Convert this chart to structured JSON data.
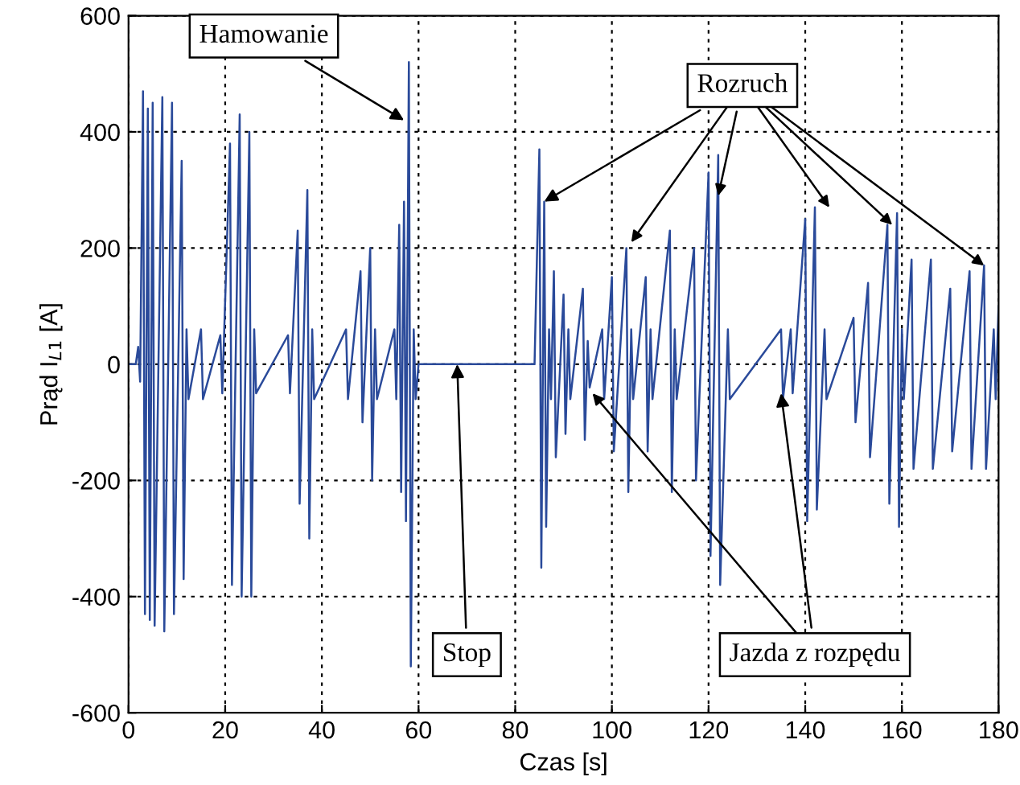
{
  "chart_data": {
    "type": "line",
    "xlabel": "Czas [s]",
    "ylabel": "Prąd I$_{L1}$ [A]",
    "xlim": [
      0,
      180
    ],
    "ylim": [
      -600,
      600
    ],
    "xticks": [
      0,
      20,
      40,
      60,
      80,
      100,
      120,
      140,
      160,
      180
    ],
    "yticks": [
      -600,
      -400,
      -200,
      0,
      200,
      400,
      600
    ],
    "grid": true,
    "line_style": "solid",
    "marker": "none",
    "series": [
      {
        "color": "#2a4a9a",
        "x": [
          0,
          1.5,
          2,
          2.4,
          3,
          3.4,
          4,
          4.4,
          5,
          5.4,
          7,
          7.4,
          9,
          9.4,
          11,
          11.4,
          12,
          12.4,
          15,
          15.4,
          19,
          19.4,
          21,
          21.4,
          23,
          23.4,
          25,
          25.4,
          26,
          26.4,
          33,
          33.4,
          35,
          35.4,
          37,
          37.4,
          38,
          38.4,
          45,
          45.4,
          48,
          48.4,
          50,
          50.4,
          51,
          51.4,
          55,
          55.4,
          56,
          56.4,
          57,
          57.4,
          58,
          58.4,
          59,
          59.4,
          60,
          84,
          85,
          85.4,
          86,
          86.4,
          87,
          87.4,
          88,
          88.4,
          90,
          90.4,
          91,
          91.4,
          94,
          94.4,
          95,
          95.4,
          98,
          98.4,
          100,
          100.4,
          103,
          103.4,
          104,
          104.4,
          107,
          107.4,
          108,
          108.4,
          112,
          112.4,
          113,
          113.4,
          117,
          117.4,
          120,
          120.4,
          122,
          122.4,
          124,
          124.4,
          135,
          135.4,
          137,
          137.4,
          140,
          140.4,
          142,
          142.4,
          144,
          144.4,
          150,
          150.4,
          153,
          153.4,
          157,
          157.4,
          159,
          159.4,
          160,
          160.4,
          162,
          162.4,
          166,
          166.4,
          170,
          170.4,
          174,
          174.4,
          177,
          177.4,
          179,
          179.4,
          180
        ],
        "values": [
          0,
          0,
          30,
          -30,
          470,
          -430,
          440,
          -440,
          450,
          -450,
          460,
          -460,
          450,
          -430,
          350,
          -370,
          60,
          -60,
          60,
          -60,
          50,
          -50,
          380,
          -380,
          430,
          -400,
          400,
          -400,
          60,
          -50,
          50,
          -50,
          230,
          -240,
          300,
          -300,
          60,
          -60,
          60,
          -60,
          160,
          -100,
          200,
          -200,
          60,
          -60,
          60,
          -60,
          240,
          -220,
          280,
          -270,
          520,
          -520,
          60,
          -60,
          0,
          0,
          370,
          -350,
          280,
          -280,
          60,
          -60,
          160,
          -160,
          120,
          -120,
          60,
          -60,
          130,
          -130,
          40,
          -40,
          60,
          -60,
          150,
          -150,
          200,
          -220,
          60,
          -60,
          150,
          -150,
          60,
          -60,
          230,
          -220,
          60,
          -60,
          200,
          -200,
          330,
          -330,
          360,
          -380,
          60,
          -60,
          60,
          -60,
          60,
          -50,
          250,
          -270,
          270,
          -250,
          60,
          -60,
          80,
          -100,
          140,
          -160,
          240,
          -240,
          260,
          -280,
          60,
          -60,
          180,
          -180,
          180,
          -180,
          130,
          -150,
          160,
          -180,
          170,
          -180,
          60,
          -60,
          100
        ]
      }
    ],
    "annotations": [
      {
        "text": "Hamowanie",
        "x": 57,
        "y": 420
      },
      {
        "text": "Rozruch",
        "x": 86,
        "y": 280
      },
      {
        "text": "Stop",
        "x": 68,
        "y": 0
      },
      {
        "text": "Jazda z rozpędu",
        "x": 135,
        "y": -50
      }
    ]
  }
}
